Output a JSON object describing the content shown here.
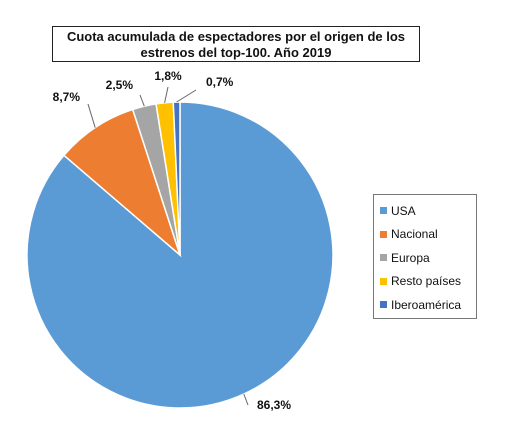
{
  "chart_data": {
    "type": "pie",
    "title": "Cuota acumulada de espectadores por el origen de los estrenos del top-100. Año 2019",
    "categories": [
      "USA",
      "Nacional",
      "Europa",
      "Resto países",
      "Iberoamérica"
    ],
    "values": [
      86.3,
      8.7,
      2.5,
      1.8,
      0.7
    ],
    "value_labels": [
      "86,3%",
      "8,7%",
      "2,5%",
      "1,8%",
      "0,7%"
    ],
    "colors": [
      "#5B9BD5",
      "#ED7D31",
      "#A5A5A5",
      "#FFC000",
      "#4472C4"
    ],
    "legend_position": "right"
  }
}
